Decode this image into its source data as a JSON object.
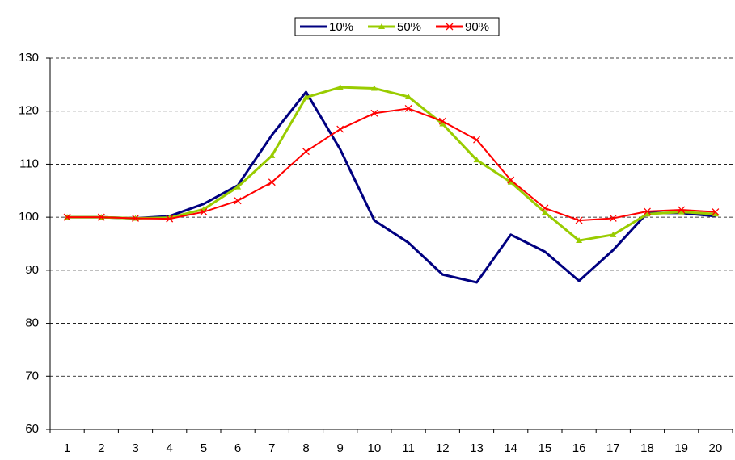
{
  "chart_data": {
    "type": "line",
    "categories": [
      1,
      2,
      3,
      4,
      5,
      6,
      7,
      8,
      9,
      10,
      11,
      12,
      13,
      14,
      15,
      16,
      17,
      18,
      19,
      20
    ],
    "series": [
      {
        "name": "10%",
        "color": "#000080",
        "marker": "none",
        "values": [
          100,
          100,
          99.8,
          100.2,
          102.5,
          106,
          115.5,
          123.6,
          112.8,
          99.4,
          95.2,
          89.2,
          87.7,
          96.7,
          93.5,
          88,
          93.8,
          100.8,
          100.8,
          100.2
        ]
      },
      {
        "name": "50%",
        "color": "#99cc00",
        "marker": "triangle",
        "values": [
          100,
          100,
          99.8,
          99.9,
          101.5,
          105.7,
          111.6,
          122.6,
          124.5,
          124.3,
          122.7,
          117.6,
          110.8,
          106.6,
          100.9,
          95.6,
          96.7,
          100.6,
          101.0,
          100.6
        ]
      },
      {
        "name": "90%",
        "color": "#ff0000",
        "marker": "x",
        "values": [
          100,
          100,
          99.8,
          99.7,
          101,
          103.1,
          106.6,
          112.4,
          116.6,
          119.6,
          120.5,
          118.1,
          114.6,
          107,
          101.7,
          99.4,
          99.8,
          101.1,
          101.4,
          101.0
        ]
      }
    ],
    "ylim": [
      60,
      130
    ],
    "yticks": [
      60,
      70,
      80,
      90,
      100,
      110,
      120,
      130
    ],
    "grid": true,
    "legend": "top"
  }
}
